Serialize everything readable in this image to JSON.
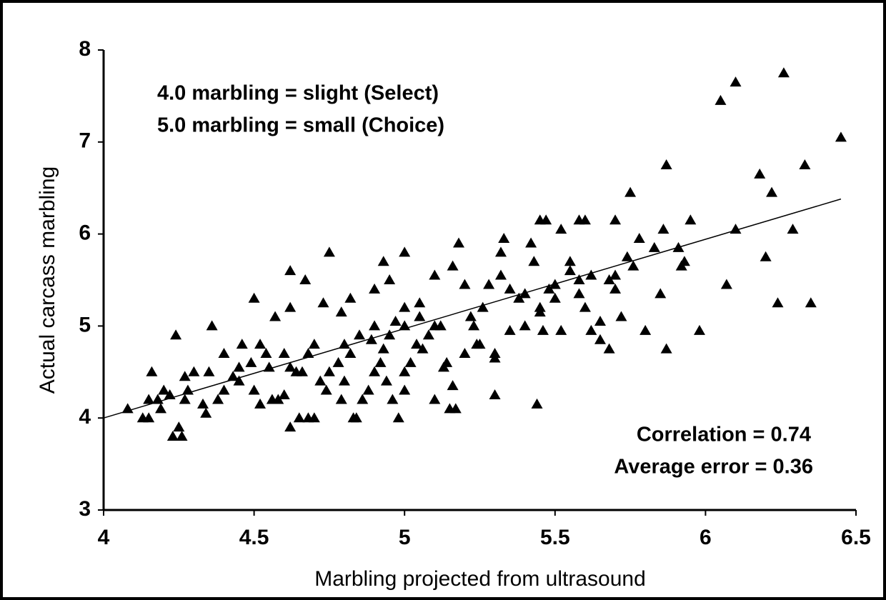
{
  "chart_data": {
    "type": "scatter",
    "x_label": "Marbling projected from ultrasound",
    "y_label": "Actual carcass marbling",
    "annotations": [
      "4.0 marbling = slight (Select)",
      "5.0 marbling = small (Choice)",
      "Correlation = 0.74",
      "Average error = 0.36"
    ],
    "xlim": [
      4,
      6.5
    ],
    "ylim": [
      3,
      8
    ],
    "xticks": [
      4,
      4.5,
      5,
      5.5,
      6,
      6.5
    ],
    "yticks": [
      3,
      4,
      5,
      6,
      7,
      8
    ],
    "color": "#000000",
    "trendline": {
      "x": [
        4,
        6.45
      ],
      "y": [
        4,
        6.38
      ]
    },
    "x": [
      6.05,
      6.1,
      6.26,
      6.45,
      5.87,
      6.33,
      6.18,
      6.22,
      5.75,
      6.29,
      6.1,
      5.86,
      5.45,
      5.47,
      5.58,
      5.6,
      5.7,
      5.95,
      5.52,
      5.33,
      5.78,
      5.83,
      5.91,
      5.93,
      5.92,
      6.2,
      6.07,
      6.24,
      6.35,
      5.85,
      5.98,
      5.87,
      5.8,
      5.68,
      5.44,
      5.3,
      4.62,
      4.65,
      4.68,
      4.23,
      4.25,
      4.26,
      4.13,
      4.15,
      4.08,
      4.16,
      4.24,
      4.36,
      4.5,
      4.62,
      4.62,
      4.67,
      4.75,
      4.93,
      5.0,
      5.18,
      5.32,
      5.42,
      4.9,
      4.95,
      4.82,
      4.79,
      4.73,
      4.57,
      4.46,
      4.4,
      4.35,
      4.3,
      4.27,
      4.2,
      4.18,
      4.22,
      4.27,
      4.33,
      4.34,
      4.4,
      4.43,
      4.45,
      4.49,
      4.52,
      4.54,
      4.56,
      4.58,
      4.6,
      4.62,
      4.64,
      4.66,
      4.68,
      4.72,
      4.75,
      4.78,
      4.8,
      4.82,
      4.84,
      4.86,
      4.88,
      4.9,
      4.92,
      4.94,
      4.96,
      4.98,
      5.0,
      5.02,
      5.04,
      5.06,
      5.08,
      5.1,
      5.12,
      5.14,
      5.15,
      5.16,
      5.2,
      5.22,
      5.24,
      5.26,
      5.28,
      5.3,
      5.32,
      5.35,
      5.38,
      5.4,
      5.43,
      5.46,
      5.48,
      5.5,
      5.52,
      5.55,
      5.58,
      5.6,
      5.62,
      5.65,
      5.68,
      5.7,
      5.72,
      5.74,
      5.76,
      4.9,
      4.95,
      5.0,
      5.05,
      4.8,
      4.85,
      4.7,
      4.55,
      4.45,
      5.25,
      5.13,
      5.35,
      5.45,
      5.55,
      5.58,
      5.05,
      5.0,
      4.97,
      5.1,
      5.16,
      5.2,
      5.23,
      4.93,
      4.89,
      4.79,
      4.74,
      4.6,
      4.5,
      4.38,
      4.28,
      4.19,
      4.15,
      4.52,
      4.7,
      4.83,
      5.0,
      5.1,
      5.17,
      5.3,
      5.4,
      5.5,
      5.45,
      5.62,
      5.65,
      5.7
    ],
    "y": [
      7.45,
      7.65,
      7.75,
      7.05,
      6.75,
      6.75,
      6.65,
      6.45,
      6.45,
      6.05,
      6.05,
      6.05,
      6.15,
      6.15,
      6.15,
      6.15,
      6.15,
      6.15,
      6.05,
      5.95,
      5.95,
      5.85,
      5.85,
      5.7,
      5.65,
      5.75,
      5.45,
      5.25,
      5.25,
      5.35,
      4.95,
      4.75,
      4.95,
      4.75,
      4.15,
      4.25,
      3.9,
      4.0,
      4.0,
      3.8,
      3.9,
      3.8,
      4.0,
      4.0,
      4.1,
      4.5,
      4.9,
      5.0,
      5.3,
      5.6,
      5.2,
      5.5,
      5.8,
      5.7,
      5.8,
      5.9,
      5.8,
      5.9,
      5.4,
      5.5,
      5.3,
      5.15,
      5.25,
      5.1,
      4.8,
      4.7,
      4.5,
      4.5,
      4.45,
      4.3,
      4.2,
      4.25,
      4.2,
      4.15,
      4.05,
      4.3,
      4.45,
      4.4,
      4.6,
      4.8,
      4.7,
      4.2,
      4.2,
      4.7,
      4.55,
      4.5,
      4.5,
      4.7,
      4.4,
      4.5,
      4.6,
      4.8,
      4.7,
      4.0,
      4.2,
      4.3,
      4.5,
      4.6,
      4.4,
      4.2,
      4.0,
      4.5,
      4.6,
      4.8,
      4.75,
      4.9,
      5.0,
      5.0,
      4.6,
      4.1,
      4.35,
      4.7,
      5.1,
      4.8,
      5.2,
      5.45,
      4.65,
      5.55,
      5.4,
      5.3,
      5.0,
      5.7,
      4.95,
      5.4,
      5.3,
      4.95,
      5.6,
      5.5,
      5.2,
      5.55,
      5.05,
      5.5,
      5.4,
      5.1,
      5.75,
      5.65,
      5.0,
      4.9,
      5.0,
      5.1,
      4.4,
      4.9,
      4.8,
      4.55,
      4.55,
      4.8,
      4.55,
      4.95,
      5.2,
      5.7,
      5.35,
      5.25,
      5.2,
      5.05,
      5.55,
      5.65,
      5.45,
      5.0,
      4.75,
      4.85,
      4.2,
      4.3,
      4.25,
      4.3,
      4.2,
      4.3,
      4.1,
      4.2,
      4.15,
      4.0,
      4.0,
      4.3,
      4.2,
      4.1,
      4.7,
      5.35,
      5.45,
      5.15,
      4.95,
      4.85,
      5.55
    ]
  }
}
